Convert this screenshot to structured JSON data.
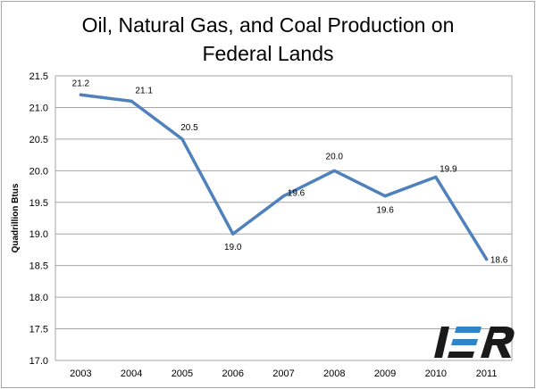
{
  "chart_data": {
    "type": "line",
    "title": "Oil, Natural Gas, and Coal Production on Federal Lands",
    "title_lines": [
      "Oil, Natural Gas, and Coal Production on",
      "Federal Lands"
    ],
    "xlabel": "",
    "ylabel": "Quadrillion Btus",
    "categories": [
      "2003",
      "2004",
      "2005",
      "2006",
      "2007",
      "2008",
      "2009",
      "2010",
      "2011"
    ],
    "values": [
      21.2,
      21.1,
      20.5,
      19.0,
      19.6,
      20.0,
      19.6,
      19.9,
      18.6
    ],
    "data_labels": [
      "21.2",
      "21.1",
      "20.5",
      "19.0",
      "19.6",
      "20.0",
      "19.6",
      "19.9",
      "18.6"
    ],
    "ylim": [
      17.0,
      21.5
    ],
    "yticks": [
      "17.0",
      "17.5",
      "18.0",
      "18.5",
      "19.0",
      "19.5",
      "20.0",
      "20.5",
      "21.0",
      "21.5"
    ],
    "grid": "horizontal",
    "line_color": "#4f81bd",
    "logo": "IER",
    "logo_colors": {
      "letters": "#1a1a1a",
      "accent": "#2e86c8"
    }
  }
}
